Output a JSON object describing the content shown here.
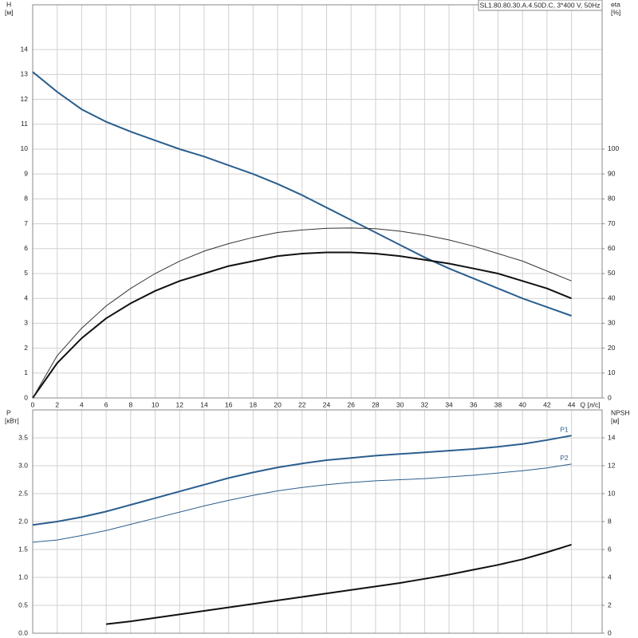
{
  "chart_data": [
    {
      "type": "line",
      "title": "SL1.80.80.30.A.4.50D.C, 3*400 V, 50Hz",
      "ylabel": "H",
      "yunit": "[м]",
      "y2label": "eta",
      "y2unit": "[%]",
      "xlabel": "Q [л/с]",
      "x": [
        0,
        2,
        4,
        6,
        8,
        10,
        12,
        14,
        16,
        18,
        20,
        22,
        24,
        26,
        28,
        30,
        32,
        34,
        36,
        38,
        40,
        42,
        44
      ],
      "xlim": [
        0,
        46.5
      ],
      "xticks": [
        0,
        2,
        4,
        6,
        8,
        10,
        12,
        14,
        16,
        18,
        20,
        22,
        24,
        26,
        28,
        30,
        32,
        34,
        36,
        38,
        40,
        42,
        44
      ],
      "ylim": [
        0,
        15.8
      ],
      "yticks": [
        0,
        1,
        2,
        3,
        4,
        5,
        6,
        7,
        8,
        9,
        10,
        11,
        12,
        13,
        14
      ],
      "y2lim": [
        0,
        158
      ],
      "y2ticks": [
        0,
        10,
        20,
        30,
        40,
        50,
        60,
        70,
        80,
        90,
        100
      ],
      "grid": true,
      "series": [
        {
          "color": "#2b5e8e",
          "style": "thick",
          "values": [
            13.1,
            12.3,
            11.6,
            11.1,
            10.7,
            10.35,
            10.0,
            9.7,
            9.35,
            9.0,
            8.6,
            8.15,
            7.65,
            7.15,
            6.65,
            6.15,
            5.65,
            5.2,
            4.8,
            4.4,
            4.0,
            3.65,
            3.3
          ]
        },
        {
          "color": "#111111",
          "style": "thick",
          "axis": "y2",
          "values": [
            0,
            14,
            24,
            32,
            38,
            43,
            47,
            50,
            53,
            55,
            57,
            58,
            58.5,
            58.5,
            58,
            57,
            55.5,
            54,
            52,
            50,
            47,
            44,
            40
          ]
        },
        {
          "color": "#333333",
          "style": "thin",
          "axis": "y2",
          "values": [
            0,
            17,
            28,
            37,
            44,
            50,
            55,
            59,
            62,
            64.5,
            66.5,
            67.5,
            68.2,
            68.3,
            68,
            67,
            65.5,
            63.5,
            61,
            58,
            55,
            51,
            47
          ]
        }
      ]
    },
    {
      "type": "line",
      "ylabel": "P",
      "yunit": "[кВт]",
      "y2label": "NPSH",
      "y2unit": "[м]",
      "ylim": [
        0,
        4.0
      ],
      "yticks": [
        {
          "value": 0,
          "label": "0.0"
        },
        {
          "value": 0.5,
          "label": "0.5"
        },
        {
          "value": 1,
          "label": "1.0"
        },
        {
          "value": 1.5,
          "label": "1.5"
        },
        {
          "value": 2,
          "label": "2.0"
        },
        {
          "value": 2.5,
          "label": "2.5"
        },
        {
          "value": 3,
          "label": "3.0"
        },
        {
          "value": 3.5,
          "label": "3.5"
        }
      ],
      "y2lim": [
        0,
        16
      ],
      "y2ticks": [
        0,
        2,
        4,
        6,
        8,
        10,
        12,
        14
      ],
      "grid": true,
      "series": [
        {
          "name": "P1",
          "color": "#2b5e8e",
          "style": "thick",
          "values": [
            1.94,
            2.0,
            2.08,
            2.18,
            2.3,
            2.42,
            2.54,
            2.66,
            2.78,
            2.88,
            2.97,
            3.04,
            3.1,
            3.14,
            3.18,
            3.21,
            3.24,
            3.27,
            3.3,
            3.34,
            3.39,
            3.46,
            3.54
          ]
        },
        {
          "name": "P2",
          "color": "#2b5e8e",
          "style": "thin",
          "values": [
            1.63,
            1.67,
            1.75,
            1.84,
            1.95,
            2.06,
            2.17,
            2.28,
            2.38,
            2.47,
            2.55,
            2.61,
            2.66,
            2.7,
            2.73,
            2.75,
            2.77,
            2.8,
            2.83,
            2.87,
            2.91,
            2.96,
            3.03
          ]
        },
        {
          "color": "#111111",
          "style": "thick",
          "axis": "y2",
          "values": [
            null,
            null,
            null,
            0.65,
            0.85,
            1.1,
            1.35,
            1.6,
            1.85,
            2.1,
            2.35,
            2.6,
            2.85,
            3.1,
            3.35,
            3.6,
            3.9,
            4.2,
            4.55,
            4.9,
            5.3,
            5.8,
            6.35
          ]
        }
      ]
    }
  ]
}
